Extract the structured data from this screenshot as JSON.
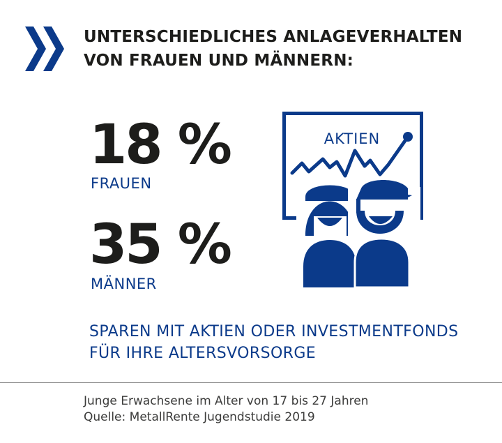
{
  "headline": {
    "line1": "UNTERSCHIEDLICHES ANLAGEVERHALTEN",
    "line2": "VON FRAUEN UND MÄNNERN:"
  },
  "stats": {
    "women": {
      "value": "18 %",
      "label": "FRAUEN"
    },
    "men": {
      "value": "35 %",
      "label": "MÄNNER"
    }
  },
  "illustration": {
    "board_label": "AKTIEN",
    "icons": [
      "chart-board-icon",
      "woman-icon",
      "man-icon"
    ]
  },
  "caption": {
    "line1": "SPAREN MIT AKTIEN ODER INVESTMENTFONDS",
    "line2": "FÜR IHRE ALTERSVORSORGE"
  },
  "footnote": {
    "line1": "Junge Erwachsene im Alter von 17 bis 27 Jahren",
    "line2": "Quelle: MetallRente Jugendstudie 2019"
  },
  "colors": {
    "brand_blue": "#0b3a8a",
    "text_dark": "#1d1d1b",
    "divider": "#8c8c8c"
  }
}
